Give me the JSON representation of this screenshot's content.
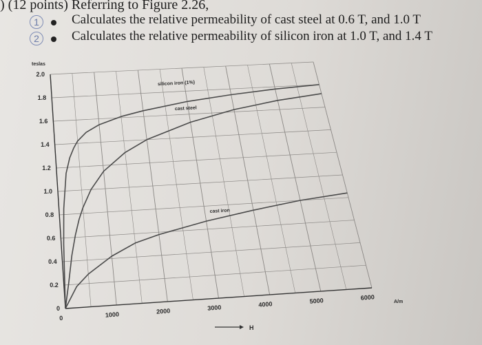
{
  "question": {
    "header": ") (12 points) Referring to Figure 2.26,",
    "items": [
      {
        "marker": "1",
        "text": "Calculates the relative permeability of cast steel at 0.6 T, and 1.0 T"
      },
      {
        "marker": "2",
        "text": "Calculates the relative permeability of silicon iron at 1.0 T, and 1.4 T"
      }
    ]
  },
  "chart_data": {
    "type": "line",
    "title": "",
    "ylabel": "teslas",
    "xlabel": "H",
    "x_unit": "A/m",
    "xlim": [
      0,
      6000
    ],
    "ylim": [
      0,
      2.0
    ],
    "grid": true,
    "y_ticks": [
      "0",
      "0.2",
      "0.4",
      "0.6",
      "0.8",
      "1.0",
      "1.2",
      "1.4",
      "1.6",
      "1.8",
      "2.0"
    ],
    "x_ticks": [
      "0",
      "1000",
      "2000",
      "3000",
      "4000",
      "5000",
      "6000"
    ],
    "series": [
      {
        "name": "silicon iron (1%)",
        "x": [
          0,
          50,
          100,
          200,
          300,
          400,
          500,
          700,
          1000,
          1500,
          2000,
          3000,
          4000,
          5000,
          6000
        ],
        "y": [
          0,
          0.55,
          0.85,
          1.15,
          1.28,
          1.36,
          1.42,
          1.49,
          1.55,
          1.61,
          1.65,
          1.71,
          1.75,
          1.78,
          1.8
        ]
      },
      {
        "name": "cast steel",
        "x": [
          0,
          100,
          200,
          300,
          400,
          500,
          700,
          1000,
          1500,
          2000,
          3000,
          4000,
          5000,
          6000
        ],
        "y": [
          0,
          0.22,
          0.45,
          0.62,
          0.75,
          0.85,
          1.0,
          1.15,
          1.3,
          1.4,
          1.53,
          1.62,
          1.68,
          1.72
        ]
      },
      {
        "name": "cast iron",
        "x": [
          0,
          250,
          500,
          1000,
          1500,
          2000,
          3000,
          4000,
          5000,
          6000
        ],
        "y": [
          0,
          0.18,
          0.28,
          0.42,
          0.52,
          0.58,
          0.67,
          0.74,
          0.8,
          0.84
        ]
      }
    ],
    "line_color": "#4a4a4a"
  }
}
